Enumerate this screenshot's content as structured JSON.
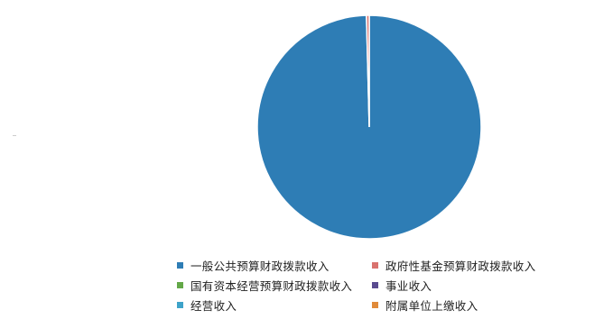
{
  "chart_data": {
    "type": "pie",
    "title": "",
    "legend_position": "bottom",
    "slices": [
      {
        "name": "一般公共预算财政拨款收入",
        "value": 99.6,
        "color": "#2e7db5"
      },
      {
        "name": "政府性基金预算财政拨款收入",
        "value": 0.4,
        "color": "#d9726e"
      },
      {
        "name": "国有资本经营预算财政拨款收入",
        "value": 0,
        "color": "#63a848"
      },
      {
        "name": "事业收入",
        "value": 0,
        "color": "#5a4b8f"
      },
      {
        "name": "经营收入",
        "value": 0,
        "color": "#3ea3c9"
      },
      {
        "name": "附属单位上缴收入",
        "value": 0,
        "color": "#e08a3a"
      }
    ]
  }
}
